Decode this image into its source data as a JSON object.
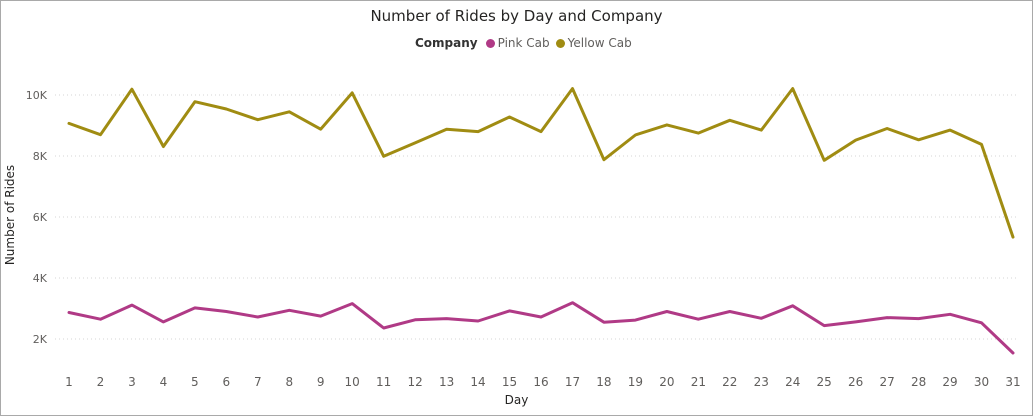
{
  "chart_data": {
    "type": "line",
    "title": "Number of Rides by Day and Company",
    "xlabel": "Day",
    "ylabel": "Number of Rides",
    "legend_title": "Company",
    "legend_position": "top-center",
    "grid": true,
    "ylim": [
      1400,
      10800
    ],
    "yticks": [
      2000,
      4000,
      6000,
      8000,
      10000
    ],
    "ytick_labels": [
      "2K",
      "4K",
      "6K",
      "8K",
      "10K"
    ],
    "x": [
      1,
      2,
      3,
      4,
      5,
      6,
      7,
      8,
      9,
      10,
      11,
      12,
      13,
      14,
      15,
      16,
      17,
      18,
      19,
      20,
      21,
      22,
      23,
      24,
      25,
      26,
      27,
      28,
      29,
      30,
      31
    ],
    "series": [
      {
        "name": "Pink Cab",
        "color": "#b03a86",
        "values": [
          2870,
          2650,
          3110,
          2560,
          3020,
          2900,
          2720,
          2940,
          2750,
          3160,
          2360,
          2630,
          2670,
          2590,
          2920,
          2720,
          3190,
          2550,
          2620,
          2900,
          2650,
          2900,
          2680,
          3090,
          2440,
          2560,
          2700,
          2670,
          2810,
          2530,
          1540
        ]
      },
      {
        "name": "Yellow Cab",
        "color": "#a08c12",
        "values": [
          9070,
          8700,
          10190,
          8310,
          9780,
          9540,
          9190,
          9450,
          8880,
          10070,
          7990,
          8430,
          8880,
          8800,
          9280,
          8800,
          10210,
          7880,
          8690,
          9020,
          8750,
          9170,
          8850,
          10210,
          7860,
          8520,
          8900,
          8530,
          8850,
          8380,
          5340
        ]
      }
    ]
  }
}
